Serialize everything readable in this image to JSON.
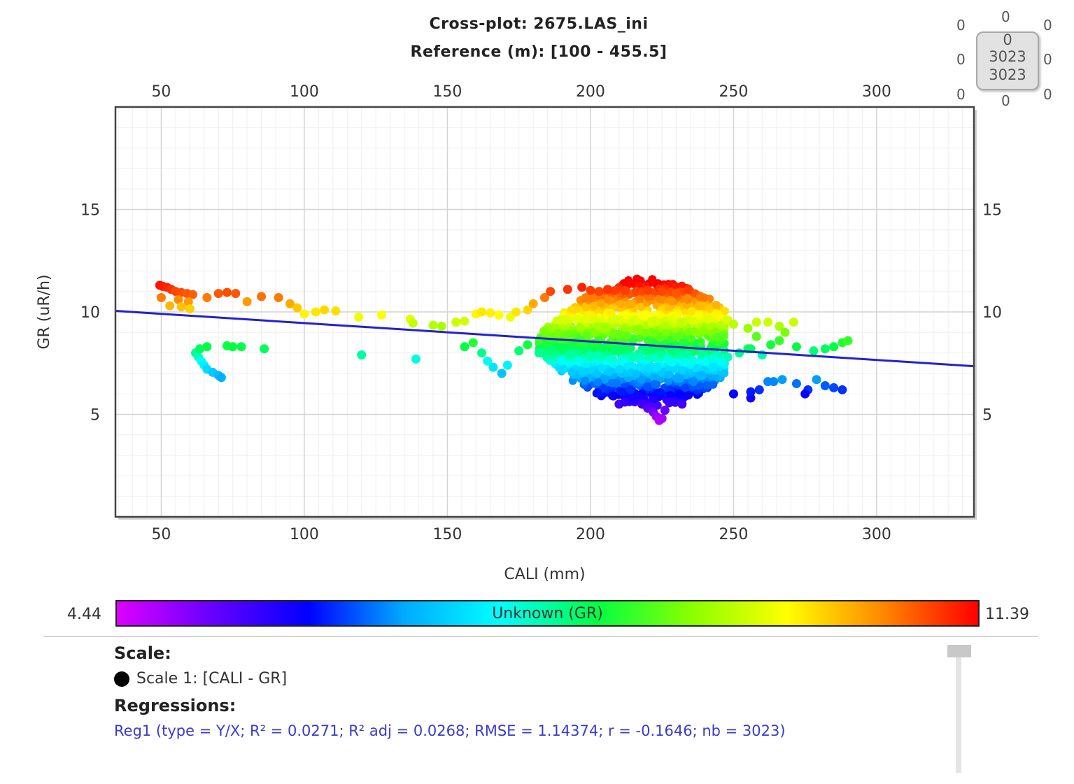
{
  "chart_data": {
    "type": "scatter",
    "title": "Cross-plot: 2675.LAS_ini",
    "subtitle": "Reference (m): [100 - 455.5]",
    "xlabel": "CALI (mm)",
    "ylabel": "GR (uR/h)",
    "xlim": [
      34,
      334
    ],
    "ylim": [
      0,
      20
    ],
    "x_ticks": [
      50,
      100,
      150,
      200,
      250,
      300
    ],
    "y_ticks": [
      5,
      10,
      15
    ],
    "grid": true,
    "color_scale": {
      "label": "Unknown (GR)",
      "min": "4.44",
      "max": "11.39",
      "min_value": 4.44,
      "max_value": 11.39,
      "colors": [
        "#dd00ff",
        "#6600ff",
        "#0000ff",
        "#00aaff",
        "#00ffff",
        "#00ff44",
        "#88ff00",
        "#ffff00",
        "#ff8800",
        "#ff0000"
      ]
    },
    "regression_line": {
      "x": [
        34,
        334
      ],
      "y": [
        10.05,
        7.35
      ],
      "color": "#2222cc"
    },
    "dense_clusters": [
      {
        "x_min": 182,
        "x_max": 247,
        "y_center": 8.5,
        "x_center": 220,
        "count": 1500
      }
    ],
    "points": [
      [
        49.5,
        11.3
      ],
      [
        50.5,
        11.25
      ],
      [
        52,
        11.2
      ],
      [
        53.5,
        11.1
      ],
      [
        55,
        11.0
      ],
      [
        57,
        10.95
      ],
      [
        59,
        10.9
      ],
      [
        61,
        10.85
      ],
      [
        50,
        10.7
      ],
      [
        56,
        10.6
      ],
      [
        59.5,
        10.5
      ],
      [
        53,
        10.3
      ],
      [
        57,
        10.25
      ],
      [
        60,
        10.15
      ],
      [
        66,
        10.7
      ],
      [
        70,
        10.9
      ],
      [
        73,
        10.95
      ],
      [
        76,
        10.9
      ],
      [
        80,
        10.5
      ],
      [
        85,
        10.75
      ],
      [
        91,
        10.7
      ],
      [
        95,
        10.4
      ],
      [
        97.5,
        10.2
      ],
      [
        100,
        9.9
      ],
      [
        104,
        10.0
      ],
      [
        107,
        10.1
      ],
      [
        111,
        10.05
      ],
      [
        119,
        9.75
      ],
      [
        127,
        9.85
      ],
      [
        137,
        9.65
      ],
      [
        138,
        9.45
      ],
      [
        139,
        7.7
      ],
      [
        120,
        7.9
      ],
      [
        62,
        8.0
      ],
      [
        63,
        7.8
      ],
      [
        64,
        7.6
      ],
      [
        65,
        7.4
      ],
      [
        66,
        7.2
      ],
      [
        68,
        7.05
      ],
      [
        70,
        6.9
      ],
      [
        71,
        6.8
      ],
      [
        63.5,
        8.2
      ],
      [
        66,
        8.3
      ],
      [
        73,
        8.35
      ],
      [
        75,
        8.3
      ],
      [
        78,
        8.3
      ],
      [
        86,
        8.2
      ],
      [
        145,
        9.35
      ],
      [
        148,
        9.3
      ],
      [
        153,
        9.5
      ],
      [
        156,
        9.55
      ],
      [
        160,
        9.9
      ],
      [
        162,
        10.0
      ],
      [
        165,
        9.95
      ],
      [
        168,
        9.85
      ],
      [
        172,
        9.75
      ],
      [
        174,
        10.0
      ],
      [
        178,
        10.1
      ],
      [
        180,
        10.4
      ],
      [
        184,
        10.7
      ],
      [
        186,
        11.0
      ],
      [
        192,
        11.1
      ],
      [
        156,
        8.3
      ],
      [
        159,
        8.5
      ],
      [
        162,
        8.0
      ],
      [
        164,
        7.6
      ],
      [
        166,
        7.3
      ],
      [
        169,
        7.0
      ],
      [
        171,
        7.4
      ],
      [
        175,
        8.1
      ],
      [
        178,
        8.4
      ],
      [
        182,
        8.0
      ],
      [
        186,
        8.1
      ],
      [
        190,
        8.2
      ],
      [
        193,
        7.9
      ],
      [
        196,
        7.6
      ],
      [
        197,
        11.2
      ],
      [
        200,
        11.05
      ],
      [
        203,
        11.0
      ],
      [
        206,
        11.1
      ],
      [
        212,
        11.05
      ],
      [
        216,
        11.0
      ],
      [
        220,
        11.05
      ],
      [
        225,
        11.0
      ],
      [
        230,
        10.9
      ],
      [
        234,
        10.6
      ],
      [
        238,
        10.3
      ],
      [
        244,
        9.9
      ],
      [
        248,
        9.6
      ],
      [
        250,
        9.4
      ],
      [
        214,
        6.2
      ],
      [
        216,
        5.8
      ],
      [
        218,
        5.5
      ],
      [
        220,
        5.3
      ],
      [
        222,
        5.1
      ],
      [
        223,
        4.9
      ],
      [
        224,
        4.7
      ],
      [
        225,
        4.8
      ],
      [
        226,
        5.2
      ],
      [
        228,
        5.6
      ],
      [
        231,
        6.0
      ],
      [
        208,
        5.9
      ],
      [
        210,
        5.5
      ],
      [
        212,
        5.6
      ],
      [
        232,
        5.5
      ],
      [
        236,
        6.6
      ],
      [
        239,
        6.9
      ],
      [
        243,
        7.3
      ],
      [
        246,
        7.6
      ],
      [
        248,
        7.8
      ],
      [
        252,
        8.0
      ],
      [
        255,
        8.2
      ],
      [
        250,
        6.0
      ],
      [
        256,
        5.8
      ],
      [
        259,
        6.2
      ],
      [
        262,
        6.6
      ],
      [
        267,
        6.7
      ],
      [
        272,
        6.5
      ],
      [
        276,
        6.2
      ],
      [
        279,
        6.7
      ],
      [
        282,
        6.4
      ],
      [
        285,
        6.3
      ],
      [
        288,
        6.2
      ],
      [
        275,
        6.0
      ],
      [
        256,
        6.1
      ],
      [
        264,
        6.6
      ],
      [
        255,
        9.2
      ],
      [
        258,
        9.5
      ],
      [
        262,
        9.5
      ],
      [
        266,
        9.3
      ],
      [
        268,
        9.0
      ],
      [
        271,
        9.5
      ],
      [
        258,
        8.8
      ],
      [
        263,
        8.4
      ],
      [
        266,
        8.6
      ],
      [
        272,
        8.3
      ],
      [
        278,
        8.1
      ],
      [
        282,
        8.2
      ],
      [
        285,
        8.3
      ],
      [
        288,
        8.5
      ],
      [
        290,
        8.6
      ],
      [
        256,
        8.2
      ],
      [
        260,
        7.9
      ]
    ]
  },
  "stats_box": {
    "top": "0",
    "top_left": "0",
    "top_right": "0",
    "mid_left": "0",
    "mid_right": "0",
    "bottom_left": "0",
    "bottom_right": "0",
    "bottom": "0",
    "inner_top": "0",
    "inner_mid": "3023",
    "inner_bottom": "3023"
  },
  "info": {
    "scale_heading": "Scale:",
    "scale_item": "Scale 1:  [CALI - GR]",
    "regressions_heading": "Regressions:",
    "regression_text": "Reg1 (type = Y/X; R² = 0.0271; R² adj = 0.0268; RMSE = 1.14374; r = -0.1646; nb = 3023)"
  }
}
